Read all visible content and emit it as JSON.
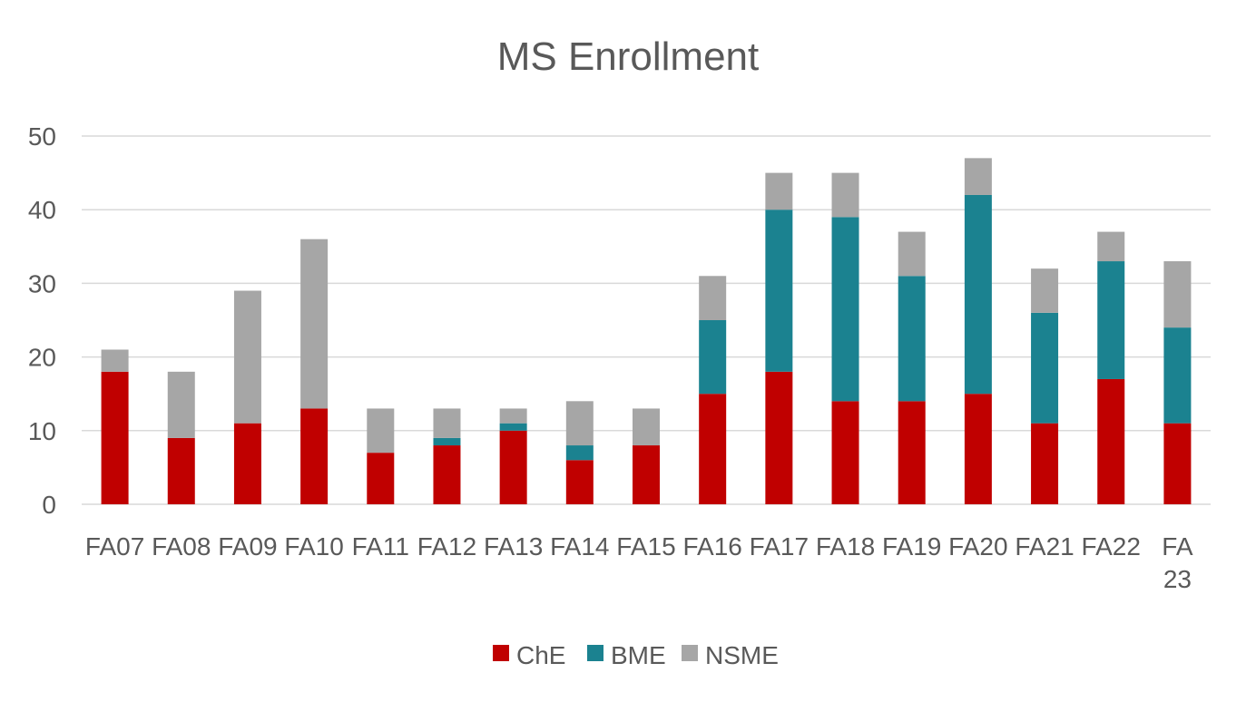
{
  "chart_data": {
    "type": "bar",
    "stacked": true,
    "title": "MS Enrollment",
    "categories": [
      "FA07",
      "FA08",
      "FA09",
      "FA10",
      "FA11",
      "FA12",
      "FA13",
      "FA14",
      "FA15",
      "FA16",
      "FA17",
      "FA18",
      "FA19",
      "FA20",
      "FA21",
      "FA22",
      "FA 23"
    ],
    "series": [
      {
        "name": "ChE",
        "color": "#c00000",
        "values": [
          18,
          9,
          11,
          13,
          7,
          8,
          10,
          6,
          8,
          15,
          18,
          14,
          14,
          15,
          11,
          17,
          11
        ]
      },
      {
        "name": "BME",
        "color": "#1b8290",
        "values": [
          0,
          0,
          0,
          0,
          0,
          1,
          1,
          2,
          0,
          10,
          22,
          25,
          17,
          27,
          15,
          16,
          13
        ]
      },
      {
        "name": "NSME",
        "color": "#a6a6a6",
        "values": [
          3,
          9,
          18,
          23,
          6,
          4,
          2,
          6,
          5,
          6,
          5,
          6,
          6,
          5,
          6,
          4,
          9
        ]
      }
    ],
    "ylim": [
      0,
      50
    ],
    "yticks": [
      0,
      10,
      20,
      30,
      40,
      50
    ],
    "grid": true,
    "legend_position": "bottom"
  }
}
